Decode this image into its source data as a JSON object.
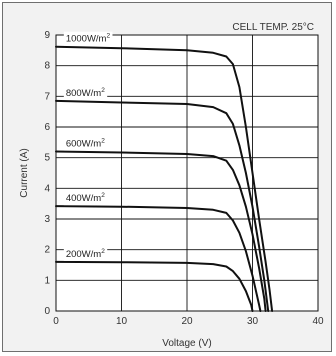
{
  "chart_data": {
    "type": "line",
    "title": "",
    "annotation": "CELL TEMP. 25°C",
    "xlabel": "Voltage (V)",
    "ylabel": "Current (A)",
    "xlim": [
      0,
      40
    ],
    "ylim": [
      0,
      9
    ],
    "x_ticks": [
      "0",
      "10",
      "20",
      "30",
      "40"
    ],
    "y_ticks": [
      "0",
      "1",
      "2",
      "3",
      "4",
      "5",
      "6",
      "7",
      "8",
      "9"
    ],
    "grid": true,
    "series": [
      {
        "name": "1000W/m²",
        "label_text": "1000W/m",
        "label_sup": "2",
        "points": [
          [
            0,
            8.62
          ],
          [
            10,
            8.57
          ],
          [
            20,
            8.5
          ],
          [
            24,
            8.42
          ],
          [
            26,
            8.3
          ],
          [
            27,
            8.05
          ],
          [
            28,
            7.3
          ],
          [
            29,
            6.0
          ],
          [
            30,
            4.5
          ],
          [
            31,
            3.0
          ],
          [
            32,
            1.6
          ],
          [
            32.6,
            0.7
          ],
          [
            33,
            0
          ]
        ]
      },
      {
        "name": "800W/m²",
        "label_text": "800W/m",
        "label_sup": "2",
        "points": [
          [
            0,
            6.85
          ],
          [
            10,
            6.8
          ],
          [
            20,
            6.75
          ],
          [
            24,
            6.65
          ],
          [
            26,
            6.45
          ],
          [
            27,
            6.1
          ],
          [
            28,
            5.4
          ],
          [
            29,
            4.5
          ],
          [
            30,
            3.4
          ],
          [
            31,
            2.1
          ],
          [
            31.8,
            1.0
          ],
          [
            32.4,
            0
          ]
        ]
      },
      {
        "name": "600W/m²",
        "label_text": "600W/m",
        "label_sup": "2",
        "points": [
          [
            0,
            5.2
          ],
          [
            10,
            5.17
          ],
          [
            20,
            5.12
          ],
          [
            24,
            5.05
          ],
          [
            26,
            4.9
          ],
          [
            27,
            4.6
          ],
          [
            28,
            4.1
          ],
          [
            29,
            3.4
          ],
          [
            30,
            2.5
          ],
          [
            31,
            1.4
          ],
          [
            31.8,
            0.4
          ],
          [
            32,
            0
          ]
        ]
      },
      {
        "name": "400W/m²",
        "label_text": "400W/m",
        "label_sup": "2",
        "points": [
          [
            0,
            3.42
          ],
          [
            10,
            3.4
          ],
          [
            20,
            3.36
          ],
          [
            24,
            3.3
          ],
          [
            26,
            3.2
          ],
          [
            27,
            2.95
          ],
          [
            28,
            2.55
          ],
          [
            29,
            1.95
          ],
          [
            30,
            1.15
          ],
          [
            31,
            0.2
          ],
          [
            31.2,
            0
          ]
        ]
      },
      {
        "name": "200W/m²",
        "label_text": "200W/m",
        "label_sup": "2",
        "points": [
          [
            0,
            1.6
          ],
          [
            10,
            1.59
          ],
          [
            20,
            1.57
          ],
          [
            24,
            1.53
          ],
          [
            26,
            1.45
          ],
          [
            27,
            1.3
          ],
          [
            28,
            1.05
          ],
          [
            29,
            0.65
          ],
          [
            29.8,
            0.2
          ],
          [
            30,
            0
          ]
        ]
      }
    ]
  }
}
